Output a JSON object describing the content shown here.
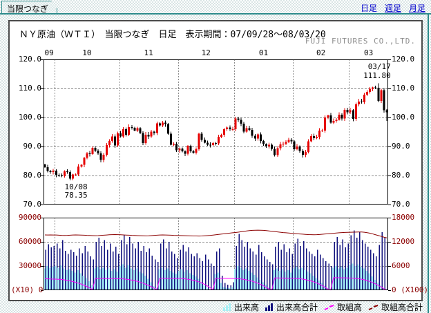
{
  "tab": {
    "label": "当限つなぎ"
  },
  "nav": {
    "daily": "日足",
    "weekly": "週足",
    "monthly": "月足"
  },
  "header": {
    "title": "ＮＹ原油（ＷＴＩ）　当限つなぎ　日足　表示期間：07/09/28～08/03/20",
    "company": "FUJI FUTURES CO.,LTD."
  },
  "annotations": {
    "low": {
      "date": "10/08",
      "value": "78.35"
    },
    "high": {
      "date": "03/17",
      "value": "111.80"
    }
  },
  "legend": {
    "items": [
      {
        "label": "出来高",
        "color": "#a5f0f6",
        "type": "bars"
      },
      {
        "label": "出来高合計",
        "color": "#12127e",
        "type": "bars"
      },
      {
        "label": "取組高",
        "color": "#ff00ff",
        "type": "line"
      },
      {
        "label": "取組高合計",
        "color": "#8b0000",
        "type": "line"
      }
    ]
  },
  "chart_data": [
    {
      "type": "candlestick",
      "title": "ＮＹ原油（ＷＴＩ）当限つなぎ 日足",
      "period": "07/09/28～08/03/20",
      "ylim": [
        70,
        120
      ],
      "y_ticks": [
        120,
        110,
        100,
        90,
        80,
        70
      ],
      "x_axis_position": "top",
      "grid": true,
      "up_color": "#e60000",
      "down_color": "#000000",
      "months": [
        {
          "label": "09",
          "days": 4
        },
        {
          "label": "10",
          "days": 23
        },
        {
          "label": "11",
          "days": 21
        },
        {
          "label": "12",
          "days": 20
        },
        {
          "label": "01",
          "days": 21
        },
        {
          "label": "02",
          "days": 20
        },
        {
          "label": "03",
          "days": 14
        }
      ],
      "closes": [
        82.9,
        81.6,
        81.2,
        81.7,
        80.2,
        80.1,
        79.9,
        81.4,
        81.2,
        78.9,
        80.3,
        80.3,
        83.1,
        83.7,
        86.1,
        87.6,
        87.4,
        89.5,
        88.6,
        87.6,
        85.3,
        87.1,
        90.5,
        91.9,
        93.5,
        90.4,
        94.5,
        93.5,
        95.9,
        94.0,
        96.7,
        96.4,
        95.5,
        96.3,
        94.6,
        91.2,
        94.1,
        93.4,
        95.1,
        94.6,
        98.0,
        97.3,
        98.2,
        97.7,
        94.4,
        90.6,
        91.0,
        88.7,
        89.3,
        88.3,
        87.5,
        90.2,
        88.3,
        87.9,
        89.0,
        94.4,
        92.3,
        91.3,
        90.6,
        90.5,
        91.2,
        91.1,
        93.3,
        94.1,
        96.0,
        96.6,
        96.0,
        96.0,
        99.6,
        99.2,
        97.9,
        95.1,
        96.3,
        95.7,
        93.7,
        92.7,
        94.2,
        91.9,
        90.8,
        90.1,
        90.6,
        89.2,
        87.0,
        89.4,
        90.7,
        91.0,
        91.6,
        92.3,
        91.8,
        89.0,
        90.0,
        88.4,
        87.1,
        88.1,
        91.8,
        93.6,
        92.8,
        93.3,
        95.5,
        95.5,
        100.0,
        100.7,
        98.2,
        98.8,
        99.2,
        100.9,
        99.6,
        102.6,
        101.8,
        102.5,
        99.5,
        104.5,
        105.5,
        105.2,
        107.9,
        108.8,
        109.9,
        110.3,
        110.2,
        105.7,
        109.4,
        102.5,
        101.8
      ],
      "specials": {
        "low_index": 9,
        "low": 78.35,
        "high_index": 119,
        "high": 111.8,
        "last_index": 122,
        "last_low": 98.8
      }
    },
    {
      "type": "bar",
      "ylim_left": [
        0,
        90000
      ],
      "ylim_right": [
        0,
        18000
      ],
      "left_ticks": [
        90000,
        60000,
        30000,
        0
      ],
      "right_ticks": [
        18000,
        12000,
        6000,
        0
      ],
      "left_unit": "(X10)",
      "right_unit": "(X100)",
      "series": [
        {
          "name": "出来高",
          "type": "bar",
          "scale": "left",
          "color": "#a5f0f6",
          "values": [
            27000,
            30000,
            28000,
            29000,
            30000,
            28000,
            31000,
            27000,
            25000,
            26000,
            24000,
            22000,
            25000,
            21000,
            18000,
            15000,
            11000,
            6000,
            27000,
            29000,
            26000,
            28000,
            25000,
            27000,
            24000,
            26000,
            23000,
            30000,
            32000,
            28000,
            31000,
            27000,
            25000,
            27000,
            23000,
            21000,
            18000,
            14000,
            10000,
            5000,
            2500,
            26000,
            28000,
            25000,
            27000,
            24000,
            22000,
            20000,
            24000,
            26000,
            23000,
            25000,
            21000,
            19000,
            17000,
            14000,
            10000,
            6000,
            3000,
            1500,
            1000,
            20000,
            22000,
            9000,
            4000,
            3000,
            2500,
            4000,
            26000,
            30000,
            28000,
            25000,
            27000,
            24000,
            22000,
            19000,
            16000,
            13000,
            10000,
            7000,
            3500,
            1800,
            25000,
            27000,
            24000,
            26000,
            23000,
            25000,
            22000,
            27000,
            29000,
            26000,
            28000,
            25000,
            23000,
            21000,
            18000,
            15000,
            12000,
            9000,
            5500,
            2800,
            1400,
            28000,
            30000,
            27000,
            29000,
            26000,
            28000,
            31000,
            33000,
            30000,
            32000,
            29000,
            27000,
            24000,
            21000,
            17000,
            13000,
            9500,
            6000,
            3000,
            1500
          ]
        },
        {
          "name": "出来高合計",
          "type": "bar",
          "scale": "left",
          "color": "#12127e",
          "values": [
            50000,
            57000,
            53000,
            55000,
            58000,
            52000,
            62000,
            49000,
            45000,
            50000,
            47000,
            43000,
            52000,
            46000,
            55000,
            48000,
            42000,
            38000,
            60000,
            65000,
            55000,
            62000,
            50000,
            58000,
            48000,
            54000,
            45000,
            62000,
            68000,
            57000,
            66000,
            58000,
            52000,
            60000,
            49000,
            55000,
            47000,
            52000,
            43000,
            38000,
            35000,
            58000,
            63000,
            52000,
            60000,
            48000,
            45000,
            40000,
            50000,
            56000,
            48000,
            53000,
            45000,
            42000,
            46000,
            40000,
            36000,
            44000,
            38000,
            33000,
            30000,
            48000,
            52000,
            18000,
            9000,
            7000,
            6000,
            10000,
            55000,
            70000,
            62000,
            54000,
            60000,
            52000,
            48000,
            44000,
            56000,
            47000,
            42000,
            38000,
            35000,
            32000,
            54000,
            60000,
            50000,
            57000,
            47000,
            52000,
            45000,
            58000,
            64000,
            55000,
            61000,
            52000,
            48000,
            45000,
            42000,
            50000,
            44000,
            40000,
            36000,
            33000,
            30000,
            60000,
            66000,
            56000,
            63000,
            53000,
            58000,
            68000,
            74000,
            65000,
            72000,
            62000,
            58000,
            54000,
            50000,
            46000,
            42000,
            56000,
            72000,
            66000,
            60000
          ]
        },
        {
          "name": "取組高",
          "type": "line",
          "scale": "right",
          "color": "#ff00ff",
          "values": [
            2850,
            2800,
            2780,
            2750,
            2750,
            2700,
            2650,
            2550,
            2450,
            2300,
            2150,
            1950,
            1750,
            1500,
            1200,
            900,
            550,
            150,
            2950,
            2940,
            2930,
            2920,
            2910,
            2900,
            2890,
            2880,
            2870,
            2860,
            2800,
            2720,
            2620,
            2500,
            2350,
            2180,
            1980,
            1750,
            1480,
            1180,
            850,
            480,
            120,
            3000,
            2990,
            2980,
            2970,
            2960,
            2950,
            2940,
            2930,
            2880,
            2810,
            2720,
            2600,
            2450,
            2270,
            2050,
            1780,
            1450,
            1050,
            600,
            150,
            2980,
            2970,
            2960,
            2950,
            2940,
            2930,
            2920,
            2900,
            2850,
            2780,
            2680,
            2550,
            2400,
            2220,
            2000,
            1750,
            1450,
            1100,
            700,
            300,
            80,
            3050,
            3040,
            3030,
            3020,
            3010,
            3000,
            2990,
            2970,
            2920,
            2850,
            2750,
            2620,
            2460,
            2270,
            2050,
            1790,
            1480,
            1120,
            700,
            280,
            60,
            3100,
            3090,
            3080,
            3070,
            3060,
            3050,
            3030,
            2990,
            2930,
            2840,
            2720,
            2570,
            2380,
            2150,
            1880,
            1560,
            1190,
            780,
            350,
            60
          ]
        },
        {
          "name": "取組高合計",
          "type": "line",
          "scale": "right",
          "color": "#8b0000",
          "values": [
            13720,
            13700,
            13710,
            13700,
            13700,
            13650,
            13600,
            13580,
            13600,
            13650,
            13700,
            13720,
            13700,
            13680,
            13650,
            13600,
            13580,
            13550,
            13530,
            13550,
            13600,
            13650,
            13700,
            13750,
            13780,
            13800,
            13780,
            13750,
            13720,
            13680,
            13650,
            13600,
            13580,
            13550,
            13520,
            13500,
            13480,
            13500,
            13550,
            13600,
            13650,
            13700,
            13720,
            13700,
            13680,
            13650,
            13600,
            13580,
            13560,
            13540,
            13520,
            13500,
            13480,
            13460,
            13450,
            13440,
            13460,
            13500,
            13550,
            13600,
            13680,
            13760,
            13840,
            13920,
            14000,
            14080,
            14160,
            14240,
            14320,
            14400,
            14500,
            14600,
            14700,
            14780,
            14840,
            14880,
            14900,
            14880,
            14840,
            14780,
            14700,
            14620,
            14540,
            14460,
            14380,
            14300,
            14240,
            14180,
            14120,
            14060,
            14000,
            13950,
            13900,
            13850,
            13800,
            13780,
            13760,
            13780,
            13820,
            13880,
            13940,
            14000,
            14060,
            14120,
            14180,
            14240,
            14300,
            14340,
            14360,
            14380,
            14400,
            14420,
            14440,
            14440,
            14380,
            14280,
            14140,
            13960,
            13760,
            13560,
            13360,
            13160,
            12980
          ]
        }
      ]
    }
  ]
}
